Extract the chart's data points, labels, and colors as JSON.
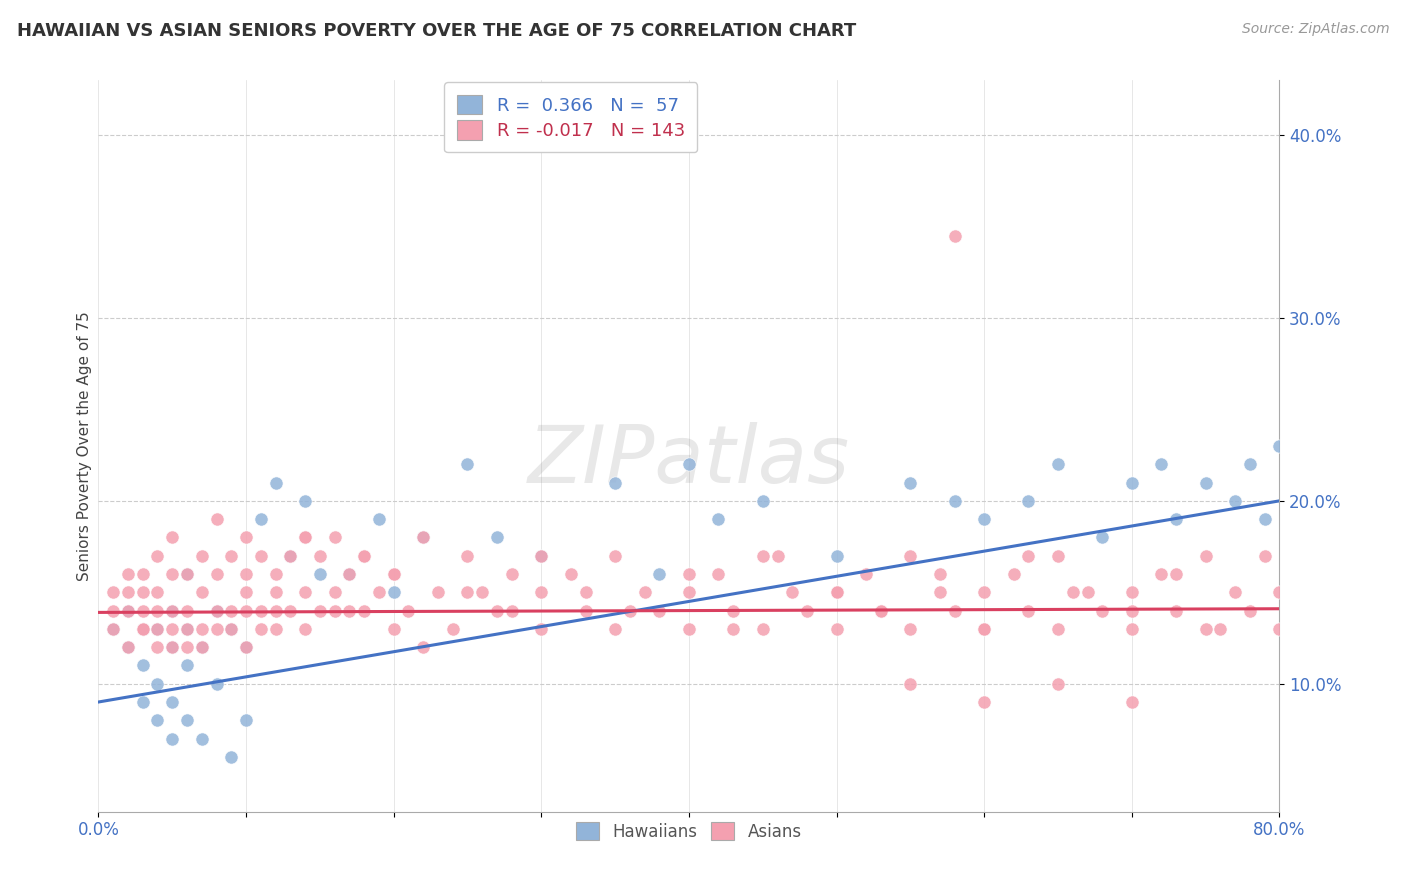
{
  "title": "HAWAIIAN VS ASIAN SENIORS POVERTY OVER THE AGE OF 75 CORRELATION CHART",
  "source": "Source: ZipAtlas.com",
  "ylabel": "Seniors Poverty Over the Age of 75",
  "hawaiian_color": "#92B4D9",
  "asian_color": "#F4A0B0",
  "hawaiian_line_color": "#4472C4",
  "asian_line_color": "#D94060",
  "hawaiian_R": 0.366,
  "hawaiian_N": 57,
  "asian_R": -0.017,
  "asian_N": 143,
  "xlim": [
    0.0,
    0.8
  ],
  "ylim": [
    0.03,
    0.43
  ],
  "haw_line_x0": 0.0,
  "haw_line_y0": 0.09,
  "haw_line_x1": 0.8,
  "haw_line_y1": 0.2,
  "asian_line_x0": 0.0,
  "asian_line_y0": 0.139,
  "asian_line_x1": 0.8,
  "asian_line_y1": 0.141,
  "hawaiian_x": [
    0.01,
    0.02,
    0.02,
    0.03,
    0.03,
    0.03,
    0.04,
    0.04,
    0.04,
    0.05,
    0.05,
    0.05,
    0.05,
    0.06,
    0.06,
    0.06,
    0.06,
    0.07,
    0.07,
    0.08,
    0.08,
    0.09,
    0.09,
    0.1,
    0.1,
    0.11,
    0.12,
    0.13,
    0.14,
    0.15,
    0.17,
    0.19,
    0.2,
    0.22,
    0.25,
    0.27,
    0.3,
    0.35,
    0.38,
    0.4,
    0.42,
    0.45,
    0.5,
    0.55,
    0.58,
    0.6,
    0.63,
    0.65,
    0.68,
    0.7,
    0.72,
    0.73,
    0.75,
    0.77,
    0.78,
    0.79,
    0.8
  ],
  "hawaiian_y": [
    0.13,
    0.12,
    0.14,
    0.09,
    0.11,
    0.13,
    0.08,
    0.1,
    0.13,
    0.07,
    0.09,
    0.12,
    0.14,
    0.08,
    0.11,
    0.13,
    0.16,
    0.07,
    0.12,
    0.1,
    0.14,
    0.06,
    0.13,
    0.08,
    0.12,
    0.19,
    0.21,
    0.17,
    0.2,
    0.16,
    0.16,
    0.19,
    0.15,
    0.18,
    0.22,
    0.18,
    0.17,
    0.21,
    0.16,
    0.22,
    0.19,
    0.2,
    0.17,
    0.21,
    0.2,
    0.19,
    0.2,
    0.22,
    0.18,
    0.21,
    0.22,
    0.19,
    0.21,
    0.2,
    0.22,
    0.19,
    0.23
  ],
  "asian_x": [
    0.01,
    0.01,
    0.01,
    0.02,
    0.02,
    0.02,
    0.02,
    0.03,
    0.03,
    0.03,
    0.03,
    0.03,
    0.04,
    0.04,
    0.04,
    0.04,
    0.04,
    0.05,
    0.05,
    0.05,
    0.05,
    0.05,
    0.06,
    0.06,
    0.06,
    0.06,
    0.07,
    0.07,
    0.07,
    0.07,
    0.08,
    0.08,
    0.08,
    0.09,
    0.09,
    0.09,
    0.1,
    0.1,
    0.1,
    0.1,
    0.11,
    0.11,
    0.11,
    0.12,
    0.12,
    0.12,
    0.13,
    0.13,
    0.14,
    0.14,
    0.14,
    0.15,
    0.15,
    0.16,
    0.16,
    0.17,
    0.17,
    0.18,
    0.18,
    0.19,
    0.2,
    0.2,
    0.21,
    0.22,
    0.23,
    0.24,
    0.25,
    0.26,
    0.27,
    0.28,
    0.3,
    0.3,
    0.32,
    0.33,
    0.35,
    0.35,
    0.37,
    0.38,
    0.4,
    0.4,
    0.42,
    0.43,
    0.45,
    0.45,
    0.47,
    0.48,
    0.5,
    0.5,
    0.52,
    0.53,
    0.55,
    0.55,
    0.57,
    0.58,
    0.6,
    0.6,
    0.62,
    0.63,
    0.65,
    0.65,
    0.67,
    0.68,
    0.7,
    0.7,
    0.72,
    0.73,
    0.75,
    0.75,
    0.77,
    0.78,
    0.8,
    0.8,
    0.58,
    0.08,
    0.1,
    0.12,
    0.14,
    0.16,
    0.18,
    0.2,
    0.22,
    0.25,
    0.28,
    0.3,
    0.33,
    0.36,
    0.4,
    0.43,
    0.46,
    0.5,
    0.53,
    0.57,
    0.6,
    0.63,
    0.66,
    0.7,
    0.73,
    0.76,
    0.79,
    0.55,
    0.6,
    0.65,
    0.7
  ],
  "asian_y": [
    0.14,
    0.15,
    0.13,
    0.12,
    0.15,
    0.16,
    0.14,
    0.13,
    0.14,
    0.15,
    0.16,
    0.13,
    0.12,
    0.14,
    0.15,
    0.17,
    0.13,
    0.12,
    0.14,
    0.16,
    0.18,
    0.13,
    0.12,
    0.14,
    0.16,
    0.13,
    0.13,
    0.15,
    0.17,
    0.12,
    0.13,
    0.16,
    0.14,
    0.14,
    0.17,
    0.13,
    0.12,
    0.15,
    0.18,
    0.14,
    0.14,
    0.17,
    0.13,
    0.13,
    0.16,
    0.14,
    0.14,
    0.17,
    0.15,
    0.18,
    0.13,
    0.14,
    0.17,
    0.15,
    0.18,
    0.16,
    0.14,
    0.14,
    0.17,
    0.15,
    0.13,
    0.16,
    0.14,
    0.12,
    0.15,
    0.13,
    0.17,
    0.15,
    0.14,
    0.16,
    0.15,
    0.13,
    0.16,
    0.14,
    0.13,
    0.17,
    0.15,
    0.14,
    0.15,
    0.13,
    0.16,
    0.14,
    0.13,
    0.17,
    0.15,
    0.14,
    0.15,
    0.13,
    0.16,
    0.14,
    0.13,
    0.17,
    0.15,
    0.14,
    0.15,
    0.13,
    0.16,
    0.14,
    0.13,
    0.17,
    0.15,
    0.14,
    0.15,
    0.13,
    0.16,
    0.14,
    0.13,
    0.17,
    0.15,
    0.14,
    0.15,
    0.13,
    0.345,
    0.19,
    0.16,
    0.15,
    0.18,
    0.14,
    0.17,
    0.16,
    0.18,
    0.15,
    0.14,
    0.17,
    0.15,
    0.14,
    0.16,
    0.13,
    0.17,
    0.15,
    0.14,
    0.16,
    0.13,
    0.17,
    0.15,
    0.14,
    0.16,
    0.13,
    0.17,
    0.1,
    0.09,
    0.1,
    0.09
  ]
}
